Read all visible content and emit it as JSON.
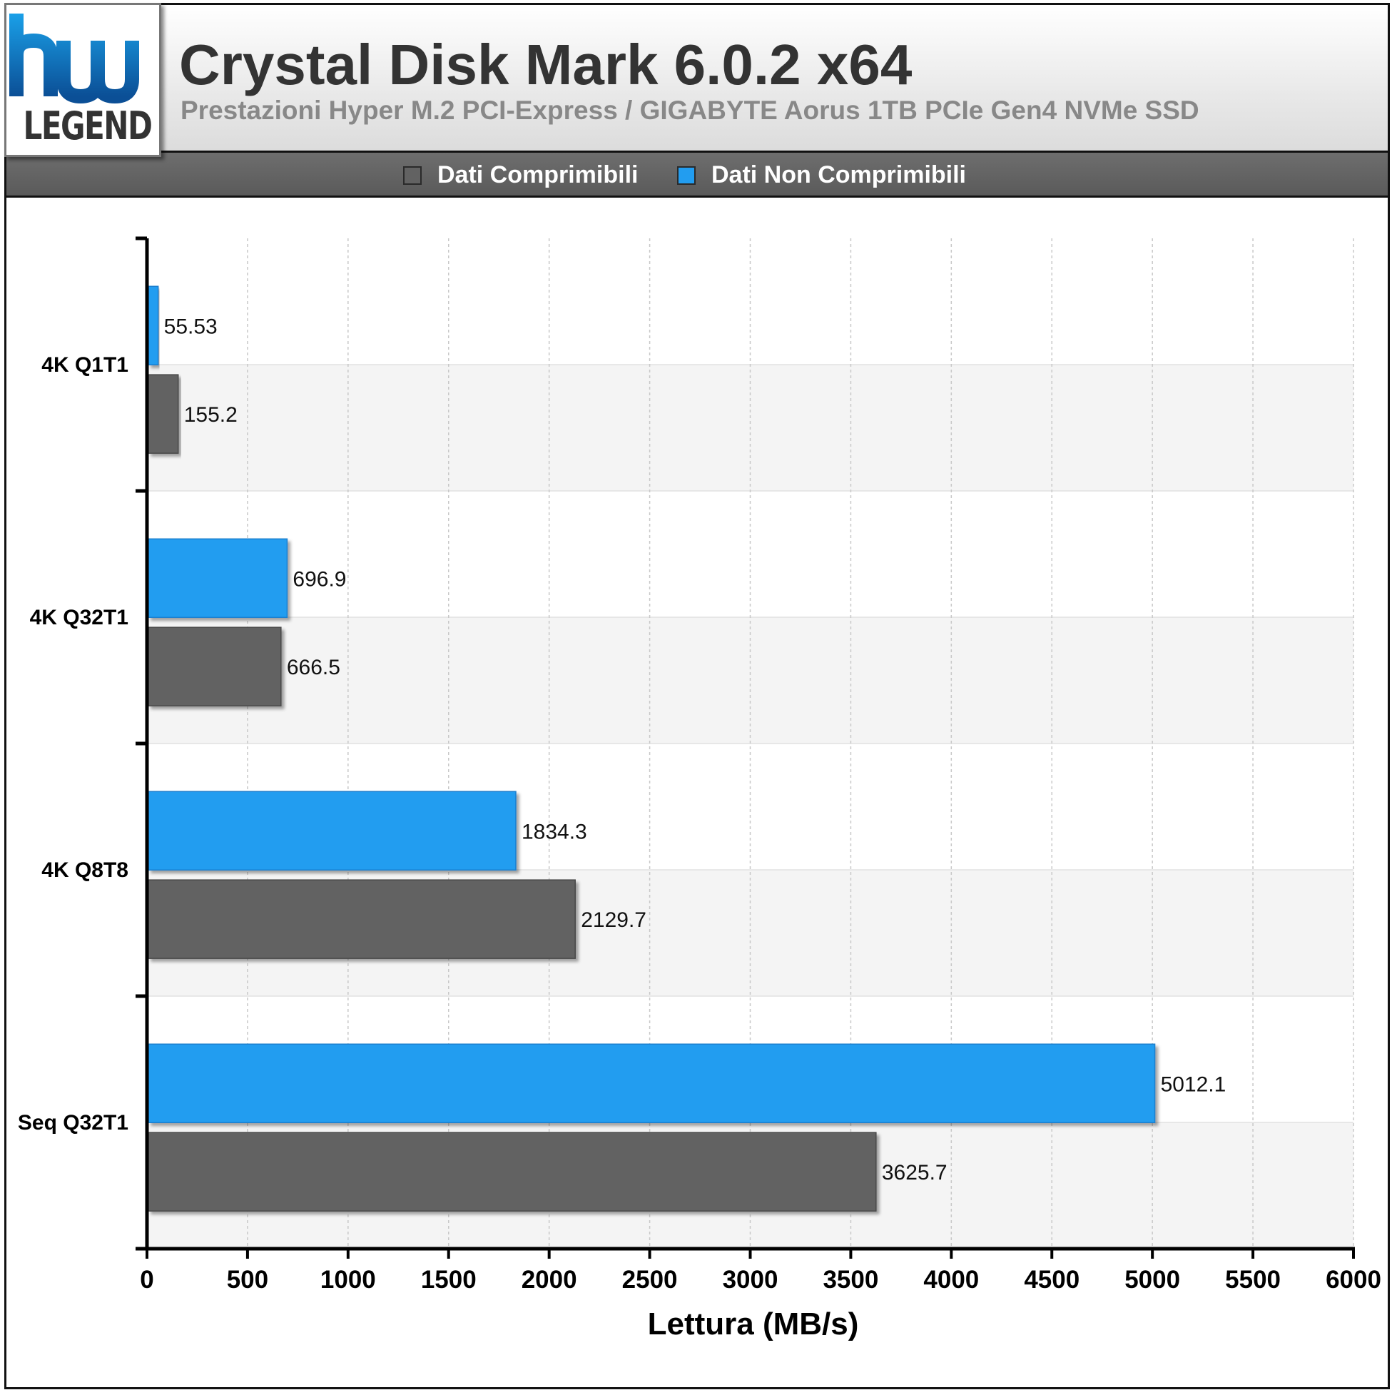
{
  "header": {
    "logo_text": "LEGEND",
    "title": "Crystal Disk Mark 6.0.2 x64",
    "subtitle": "Prestazioni Hyper M.2 PCI-Express / GIGABYTE Aorus 1TB PCIe Gen4 NVMe SSD"
  },
  "legend": [
    {
      "label": "Dati Comprimibili",
      "color": "#626262"
    },
    {
      "label": "Dati Non Comprimibili",
      "color": "#229df0"
    }
  ],
  "chart_data": {
    "type": "bar",
    "orientation": "horizontal",
    "categories": [
      "4K Q1T1",
      "4K Q32T1",
      "4K Q8T8",
      "Seq Q32T1"
    ],
    "series": [
      {
        "name": "Dati Non Comprimibili",
        "color": "#229df0",
        "values": [
          55.53,
          696.9,
          1834.3,
          5012.1
        ]
      },
      {
        "name": "Dati Comprimibili",
        "color": "#626262",
        "values": [
          155.2,
          666.5,
          2129.7,
          3625.7
        ]
      }
    ],
    "value_labels": {
      "Dati Non Comprimibili": [
        "55.53",
        "696.9",
        "1834.3",
        "5012.1"
      ],
      "Dati Comprimibili": [
        "155.2",
        "666.5",
        "2129.7",
        "3625.7"
      ]
    },
    "xlabel": "Lettura (MB/s)",
    "ylabel": "",
    "xlim": [
      0,
      6000
    ],
    "xticks": [
      0,
      500,
      1000,
      1500,
      2000,
      2500,
      3000,
      3500,
      4000,
      4500,
      5000,
      5500,
      6000
    ],
    "grid": true,
    "legend_position": "top"
  }
}
